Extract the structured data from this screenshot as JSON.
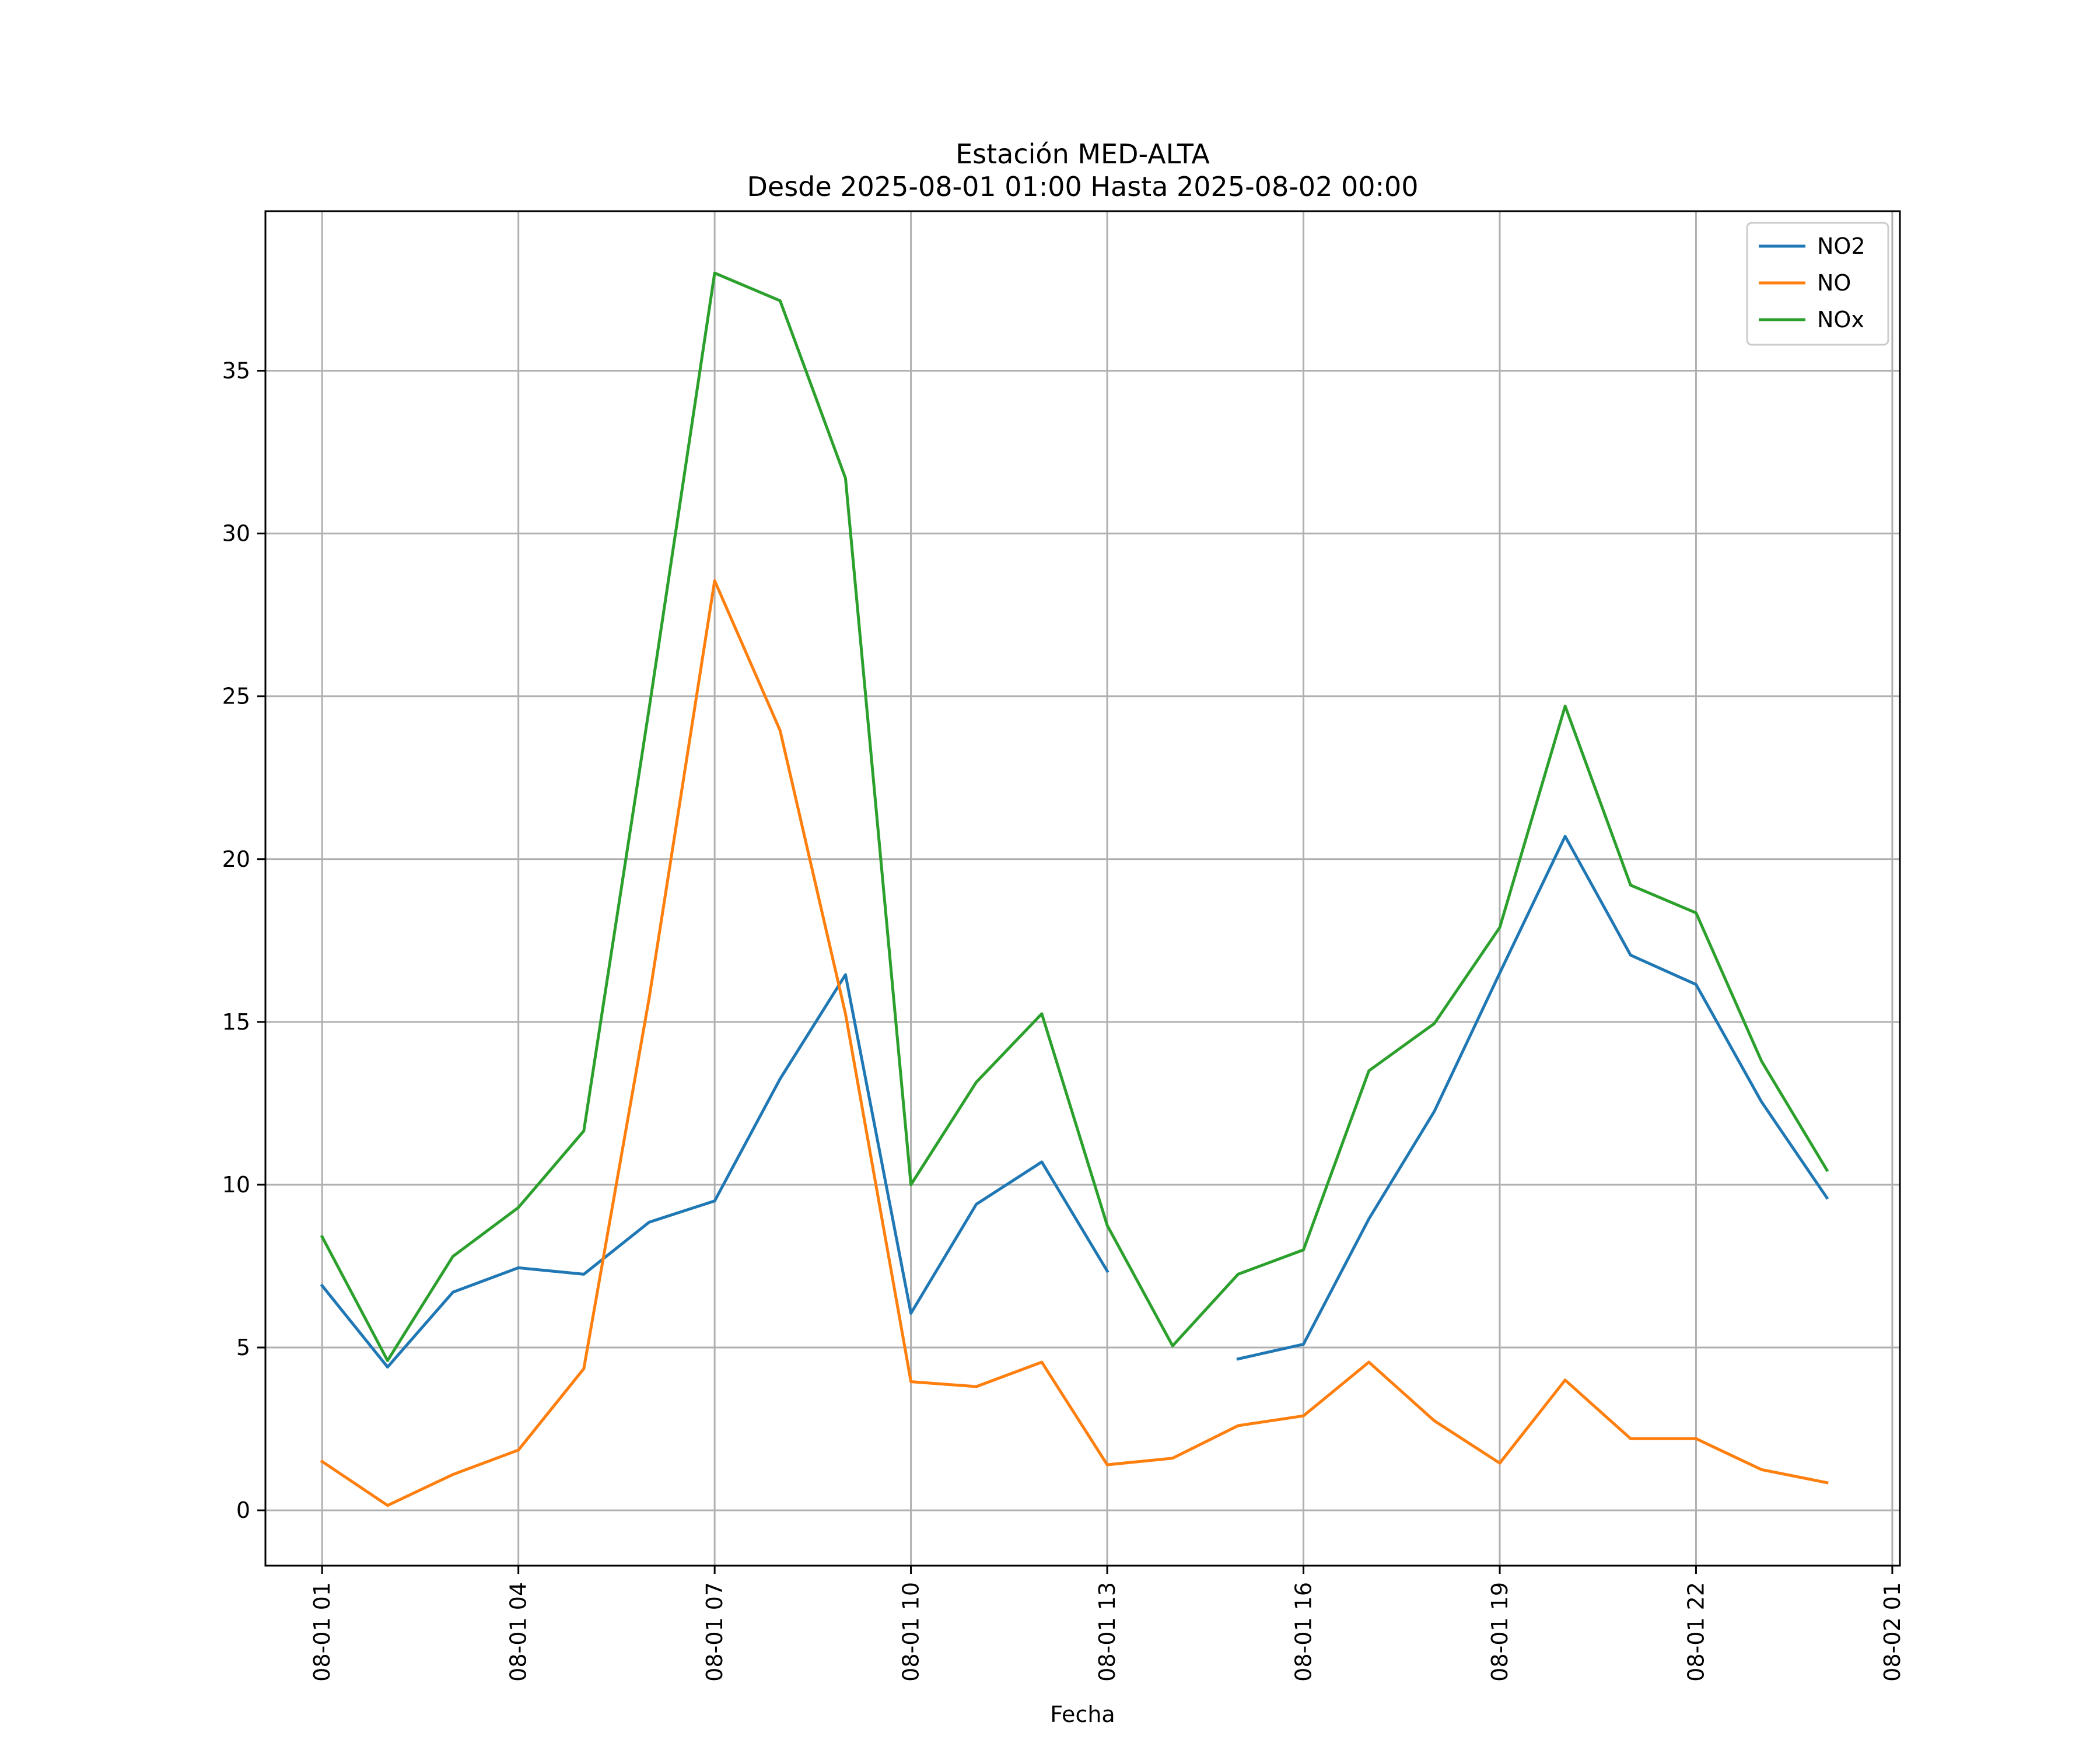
{
  "chart_data": {
    "type": "line",
    "title": "Estación MED-ALTA",
    "subtitle": "Desde 2025-08-01 01:00 Hasta 2025-08-02 00:00",
    "xlabel": "Fecha",
    "ylabel": "",
    "x": [
      "2025-08-01 01:00",
      "2025-08-01 02:00",
      "2025-08-01 03:00",
      "2025-08-01 04:00",
      "2025-08-01 05:00",
      "2025-08-01 06:00",
      "2025-08-01 07:00",
      "2025-08-01 08:00",
      "2025-08-01 09:00",
      "2025-08-01 10:00",
      "2025-08-01 11:00",
      "2025-08-01 12:00",
      "2025-08-01 13:00",
      "2025-08-01 14:00",
      "2025-08-01 15:00",
      "2025-08-01 16:00",
      "2025-08-01 17:00",
      "2025-08-01 18:00",
      "2025-08-01 19:00",
      "2025-08-01 20:00",
      "2025-08-01 21:00",
      "2025-08-01 22:00",
      "2025-08-01 23:00",
      "2025-08-02 00:00"
    ],
    "xlim": [
      "2025-08-01 00:08",
      "2025-08-02 01:07"
    ],
    "ylim": [
      -1.7,
      39.9
    ],
    "x_ticks": [
      "08-01 01",
      "08-01 04",
      "08-01 07",
      "08-01 10",
      "08-01 13",
      "08-01 16",
      "08-01 19",
      "08-01 22",
      "08-02 01"
    ],
    "x_tick_values": [
      "2025-08-01 01:00",
      "2025-08-01 04:00",
      "2025-08-01 07:00",
      "2025-08-01 10:00",
      "2025-08-01 13:00",
      "2025-08-01 16:00",
      "2025-08-01 19:00",
      "2025-08-01 22:00",
      "2025-08-02 01:00"
    ],
    "y_ticks": [
      0,
      5,
      10,
      15,
      20,
      25,
      30,
      35
    ],
    "grid": true,
    "legend_position": "top-right",
    "series": [
      {
        "name": "NO2",
        "color": "#1f77b4",
        "values": [
          6.9,
          4.4,
          6.7,
          7.45,
          7.25,
          8.85,
          9.5,
          13.25,
          16.45,
          6.05,
          9.4,
          10.7,
          7.35,
          null,
          4.65,
          5.1,
          8.95,
          12.25,
          16.5,
          20.7,
          17.05,
          16.15,
          12.55,
          9.6
        ]
      },
      {
        "name": "NO",
        "color": "#ff7f0e",
        "values": [
          1.5,
          0.15,
          1.1,
          1.85,
          4.35,
          15.75,
          28.55,
          23.95,
          15.25,
          3.95,
          3.8,
          4.55,
          1.4,
          1.6,
          2.6,
          2.9,
          4.55,
          2.75,
          1.45,
          4.0,
          2.2,
          2.2,
          1.25,
          0.85
        ]
      },
      {
        "name": "NOx",
        "color": "#2ca02c",
        "values": [
          8.4,
          4.6,
          7.8,
          9.3,
          11.65,
          24.65,
          38.0,
          37.15,
          31.7,
          10.0,
          13.15,
          15.25,
          8.75,
          5.05,
          7.25,
          8.0,
          13.5,
          14.95,
          17.9,
          24.7,
          19.2,
          18.35,
          13.8,
          10.45
        ]
      }
    ]
  }
}
